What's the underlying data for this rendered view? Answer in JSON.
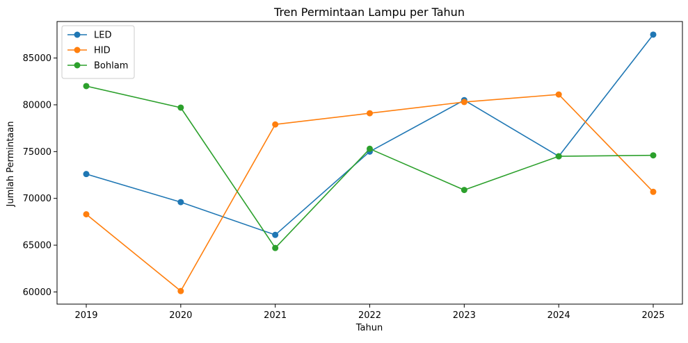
{
  "chart_data": {
    "type": "line",
    "title": "Tren Permintaan Lampu per Tahun",
    "xlabel": "Tahun",
    "ylabel": "Jumlah Permintaan",
    "categories": [
      "2019",
      "2020",
      "2021",
      "2022",
      "2023",
      "2024",
      "2025"
    ],
    "series": [
      {
        "name": "LED",
        "color": "#1f77b4",
        "values": [
          72600,
          69600,
          66100,
          75000,
          80500,
          74500,
          87500
        ]
      },
      {
        "name": "HID",
        "color": "#ff7f0e",
        "values": [
          68300,
          60100,
          77900,
          79100,
          80300,
          81100,
          70700
        ]
      },
      {
        "name": "Bohlam",
        "color": "#2ca02c",
        "values": [
          82000,
          79700,
          64700,
          75300,
          70900,
          74500,
          74600
        ]
      }
    ],
    "ylim": [
      58700,
      88900
    ],
    "yticks": [
      60000,
      65000,
      70000,
      75000,
      80000,
      85000
    ],
    "grid": false,
    "legend_position": "top-left",
    "marker": "circle"
  }
}
